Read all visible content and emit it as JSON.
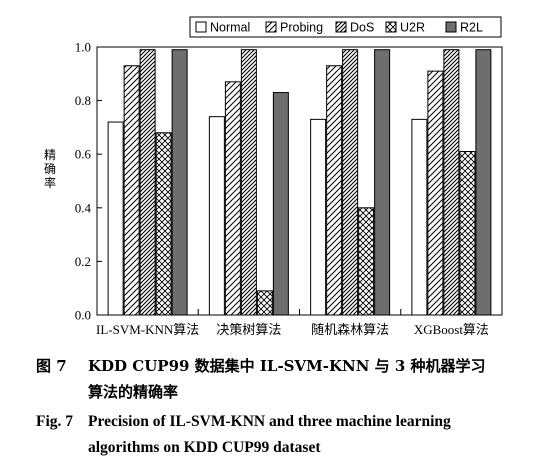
{
  "chart_data": {
    "type": "bar",
    "categories": [
      "IL-SVM-KNN算法",
      "决策树算法",
      "随机森林算法",
      "XGBoost算法"
    ],
    "series": [
      {
        "name": "Normal",
        "values": [
          0.72,
          0.74,
          0.73,
          0.73
        ],
        "fill": "white"
      },
      {
        "name": "Probing",
        "values": [
          0.93,
          0.87,
          0.93,
          0.91
        ],
        "fill": "diagonal"
      },
      {
        "name": "DoS",
        "values": [
          0.99,
          0.99,
          0.99,
          0.99
        ],
        "fill": "dense-diagonal"
      },
      {
        "name": "U2R",
        "values": [
          0.68,
          0.09,
          0.4,
          0.61
        ],
        "fill": "crosshatch"
      },
      {
        "name": "R2L",
        "values": [
          0.99,
          0.83,
          0.99,
          0.99
        ],
        "fill": "gray"
      }
    ],
    "ylabel": "精确率",
    "xlabel": "",
    "ylim": [
      0.0,
      1.0
    ],
    "yticks": [
      "0.0",
      "0.2",
      "0.4",
      "0.6",
      "0.8",
      "1.0"
    ],
    "legend_position": "top-right",
    "colors": {
      "gray": "#6e6e6e",
      "axis": "#000000"
    }
  },
  "caption": {
    "zh_number": "图 7",
    "zh_line1": "KDD CUP99 数据集中 IL-SVM-KNN 与 3 种机器学习",
    "zh_line2": "算法的精确率",
    "en_number": "Fig. 7",
    "en_line1": "Precision of IL-SVM-KNN and three machine learning",
    "en_line2": "algorithms on KDD CUP99 dataset"
  }
}
